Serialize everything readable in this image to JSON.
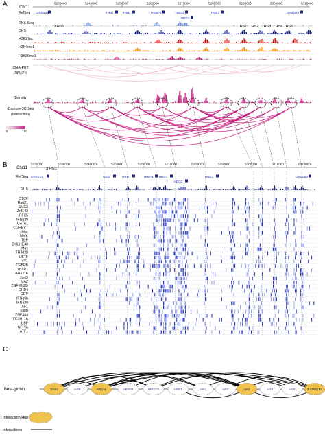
{
  "panels": {
    "a": {
      "letter": "A",
      "chrom": "Chr11",
      "ticks": [
        "5230000",
        "5240000",
        "5250000",
        "5260000",
        "5270000",
        "5280000",
        "5290000",
        "5300000",
        "5310000"
      ],
      "genes": [
        "OR51V1",
        "HBB",
        "HBD",
        "HBBP1",
        "HBG1",
        "HBG2",
        "HBE1",
        "OR51B4"
      ],
      "tracks": [
        "RefSeq",
        "RNA-Seq",
        "DHS",
        "H3K27ac",
        "H3K4me1",
        "H3K36me3",
        "ChIA-PET",
        "(RNAPII)",
        "(Density)",
        "iCapture-3C-Seq",
        "(Interaction)"
      ],
      "hs_labels": [
        "3'HS1",
        "HS1",
        "HS2",
        "HS3",
        "HS4",
        "HS5"
      ],
      "scale": [
        "0",
        "150"
      ]
    },
    "b": {
      "letter": "B",
      "chrom": "Chr11",
      "ticks": [
        "5220000",
        "5230000",
        "5240000",
        "5250000",
        "5260000",
        "5270000",
        "5280000",
        "5290000",
        "5300000",
        "5310000",
        "5320000"
      ],
      "hs": "3'HS1",
      "genes": [
        "OR51V1",
        "HBB",
        "HBD",
        "HBBP1",
        "HBG1",
        "HBG2",
        "HBE1",
        "OR51B4"
      ],
      "factors": [
        "DHS",
        "CTCF",
        "Rad21",
        "SMC3",
        "Znf143",
        "RFX5",
        "IFNg30",
        "GATA1",
        "COREST",
        "c-Myc",
        "MafK",
        "TBP",
        "BHLHE40",
        "Max",
        "TRIM28",
        "UBTF",
        "YY1",
        "CEBPB",
        "TBLR1",
        "ARID3A",
        "JunD",
        "MAZ",
        "ZNF-MIZD",
        "CHD4",
        "CDP",
        "IFNg6h",
        "IFNa30",
        "TAF1",
        "p300",
        "ZNF384",
        "ZC3H11A",
        "UBF",
        "NF-YA",
        "ATF1"
      ]
    },
    "c": {
      "letter": "C",
      "locus": "Beta-globin",
      "nodes": [
        {
          "label": "3'HS1",
          "hub": true
        },
        {
          "label": "HBB",
          "hub": false
        },
        {
          "label": "HBD-ψ",
          "hub": true
        },
        {
          "label": "HBBP1",
          "hub": false
        },
        {
          "label": "HBG1/2",
          "hub": false
        },
        {
          "label": "HBE1",
          "hub": false
        },
        {
          "label": "HS1",
          "hub": false
        },
        {
          "label": "HS2",
          "hub": false
        },
        {
          "label": "HS3",
          "hub": true
        },
        {
          "label": "HS4",
          "hub": false
        },
        {
          "label": "HS5",
          "hub": false
        },
        {
          "label": "3'-OR51B4",
          "hub": true
        }
      ],
      "legend_hub": "Interaction Hub",
      "legend_int": "Interactions"
    }
  },
  "colors": {
    "navy": "#1a237e",
    "blue": "#2b3bbf",
    "lightblue": "#6f8fd8",
    "red": "#c62828",
    "orange": "#ef8f00",
    "magenta": "#c2187a",
    "pink": "#e8a6c8",
    "hub": "#f0c24e",
    "grey": "#888888"
  }
}
